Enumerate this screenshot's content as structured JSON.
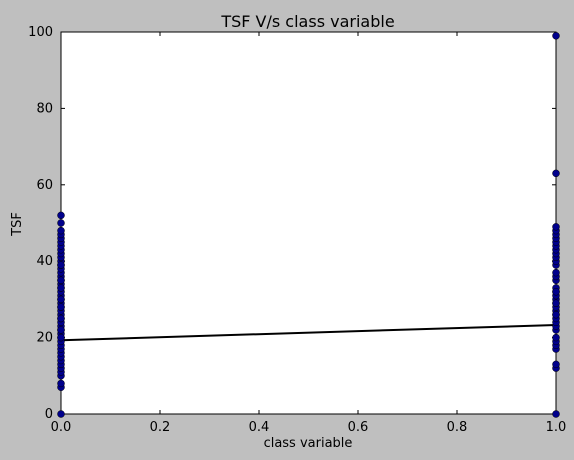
{
  "chart_data": {
    "type": "scatter",
    "title": "TSF V/s class variable",
    "xlabel": "class variable",
    "ylabel": "TSF",
    "xlim": [
      0.0,
      1.0
    ],
    "ylim": [
      0,
      100
    ],
    "x_ticks": [
      "0.0",
      "0.2",
      "0.4",
      "0.6",
      "0.8",
      "1.0"
    ],
    "y_ticks": [
      "0",
      "20",
      "40",
      "60",
      "80",
      "100"
    ],
    "grid": false,
    "legend": "none",
    "colors": {
      "background": "#bfbfbf",
      "plot_area": "#ffffff",
      "points": "#00008b",
      "fit_line": "#000000"
    },
    "series": [
      {
        "x": [
          0,
          0,
          0,
          0,
          0,
          0,
          0,
          0,
          0,
          0,
          0,
          0,
          0,
          0,
          0,
          0,
          0,
          0,
          0,
          0,
          0,
          0,
          0,
          0,
          0,
          0,
          0,
          0,
          0,
          0,
          0,
          0,
          0,
          0,
          0,
          0,
          0,
          0,
          0,
          0,
          0,
          0,
          0,
          0,
          0,
          0,
          0,
          0,
          0,
          0,
          0,
          0,
          1,
          1,
          1,
          1,
          1,
          1,
          1,
          1,
          1,
          1,
          1,
          1,
          1,
          1,
          1,
          1,
          1,
          1,
          1,
          1,
          1,
          1,
          1,
          1,
          1,
          1,
          1,
          1,
          1,
          1,
          1,
          1,
          1,
          1,
          1,
          1,
          1,
          1
        ],
        "y": [
          0,
          7,
          8,
          10,
          11,
          12,
          13,
          14,
          15,
          16,
          17,
          18,
          19,
          20,
          21,
          22,
          23,
          24,
          25,
          26,
          27,
          28,
          29,
          30,
          31,
          32,
          33,
          34,
          35,
          36,
          37,
          38,
          39,
          40,
          41,
          42,
          43,
          44,
          45,
          46,
          47,
          48,
          50,
          52,
          20,
          22,
          25,
          28,
          30,
          33,
          35,
          39,
          0,
          12,
          13,
          17,
          18,
          19,
          20,
          22,
          23,
          24,
          25,
          26,
          27,
          28,
          29,
          30,
          31,
          32,
          33,
          35,
          36,
          37,
          39,
          40,
          41,
          42,
          43,
          44,
          45,
          46,
          47,
          48,
          49,
          63,
          99,
          26,
          29,
          32
        ]
      }
    ],
    "fit_line": {
      "x": [
        0.0,
        1.0
      ],
      "y": [
        19.3,
        23.3
      ]
    }
  }
}
